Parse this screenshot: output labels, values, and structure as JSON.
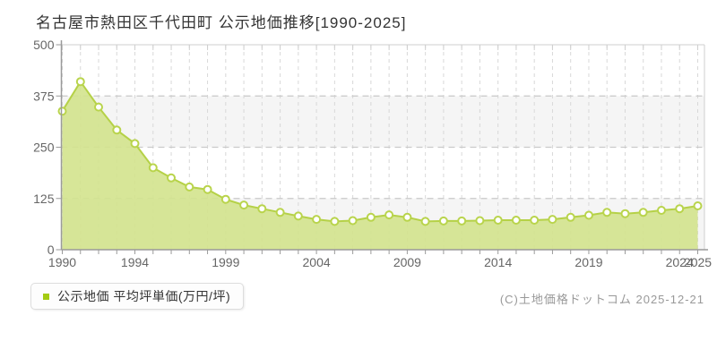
{
  "title": "名古屋市熱田区千代田町 公示地価推移[1990-2025]",
  "legend": {
    "marker_color": "#a4cb13",
    "label": "公示地価 平均坪単価(万円/坪)"
  },
  "copyright": "(C)土地価格ドットコム 2025-12-21",
  "chart_data": {
    "type": "area",
    "title": "名古屋市熱田区千代田町 公示地価推移[1990-2025]",
    "series_name": "公示地価",
    "ylabel": "平均坪単価(万円/坪)",
    "x": [
      1990,
      1991,
      1992,
      1993,
      1994,
      1995,
      1996,
      1997,
      1998,
      1999,
      2000,
      2001,
      2002,
      2003,
      2004,
      2005,
      2006,
      2007,
      2008,
      2009,
      2010,
      2011,
      2012,
      2013,
      2014,
      2015,
      2016,
      2017,
      2018,
      2019,
      2020,
      2021,
      2022,
      2023,
      2024,
      2025
    ],
    "values": [
      338,
      410,
      348,
      292,
      259,
      200,
      175,
      153,
      147,
      123,
      109,
      100,
      91,
      82,
      74,
      69,
      71,
      79,
      85,
      79,
      69,
      70,
      70,
      71,
      72,
      72,
      72,
      74,
      79,
      84,
      91,
      88,
      91,
      96,
      100,
      107
    ],
    "ylim": [
      0,
      500
    ],
    "yticks": [
      0,
      125,
      250,
      375,
      500
    ],
    "xticks": [
      1990,
      1994,
      1999,
      2004,
      2009,
      2014,
      2019,
      2024,
      2025
    ],
    "grid": true,
    "legend_position": "bottom-left",
    "colors": {
      "fill": "#d3e38d",
      "line": "#b5d147",
      "marker_fill": "#ffffff",
      "marker_stroke": "#b9d44c",
      "band": "#f5f5f5",
      "grid_h": "#c9c9c9",
      "grid_v": "#d8d8d8",
      "axis": "#9a9a9a",
      "border": "#cfcfcf",
      "tick_text": "#666666"
    }
  }
}
